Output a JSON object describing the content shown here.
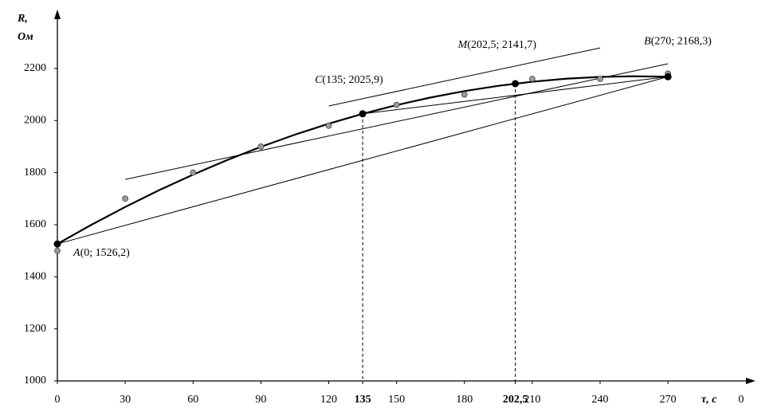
{
  "chart_data": {
    "type": "line",
    "y_label": [
      "R,",
      "Ом"
    ],
    "x_label": "τ, c",
    "x_end_label": "0",
    "xlim": [
      0,
      308
    ],
    "ylim": [
      1000,
      2417
    ],
    "xticks": [
      0,
      30,
      60,
      90,
      120,
      135,
      150,
      180,
      {
        "value": 202.5,
        "label": "202,5"
      },
      210,
      240,
      270
    ],
    "yticks": [
      1000,
      1200,
      1400,
      1600,
      1800,
      2000,
      2200
    ],
    "series": [
      {
        "kind": "scatter",
        "color": "#999999",
        "x": [
          0,
          30,
          60,
          90,
          120,
          150,
          180,
          210,
          240,
          270
        ],
        "values": [
          1500,
          1700,
          1800,
          1900,
          1980,
          2060,
          2100,
          2160,
          2160,
          2180
        ]
      },
      {
        "kind": "curve",
        "color": "#000000",
        "x": [
          0,
          15,
          30,
          45,
          60,
          75,
          90,
          105,
          120,
          135,
          150,
          165,
          180,
          195,
          210,
          225,
          240,
          255,
          270
        ],
        "values": [
          1526.2,
          1599.4,
          1668.1,
          1732.5,
          1792.4,
          1847.9,
          1899.0,
          1945.7,
          1988.0,
          2025.9,
          2059.4,
          2088.4,
          2113.1,
          2133.3,
          2149.1,
          2160.6,
          2167.6,
          2170.1,
          2168.3
        ]
      },
      {
        "kind": "segment",
        "color": "#000000",
        "x": [
          0,
          270
        ],
        "values": [
          1526.2,
          2168.3
        ]
      },
      {
        "kind": "segment",
        "color": "#000000",
        "x": [
          135,
          270
        ],
        "values": [
          2025.9,
          2168.3
        ]
      },
      {
        "kind": "segment",
        "color": "#000000",
        "x": [
          30,
          270
        ],
        "values": [
          1774,
          2218
        ]
      },
      {
        "kind": "segment",
        "color": "#000000",
        "x": [
          120,
          240
        ],
        "values": [
          2056,
          2279
        ]
      }
    ],
    "points": [
      {
        "label": "A(0; 1526,2)",
        "x": 0,
        "y": 1526.2,
        "drop_line": false
      },
      {
        "label": "C(135; 2025,9)",
        "x": 135,
        "y": 2025.9,
        "drop_line": true
      },
      {
        "label": "M(202,5; 2141,7)",
        "x": 202.5,
        "y": 2141.7,
        "drop_line": true
      },
      {
        "label": "B(270; 2168,3)",
        "x": 270,
        "y": 2168.3,
        "drop_line": false
      }
    ]
  }
}
